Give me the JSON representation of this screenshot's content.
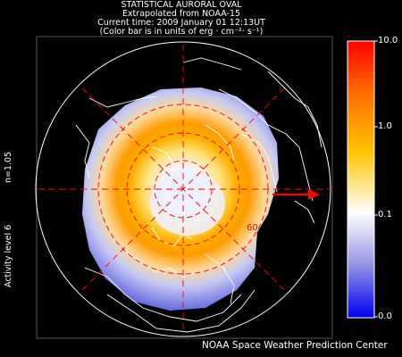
{
  "header": {
    "line1": "STATISTICAL AURORAL OVAL",
    "line2": "Extrapolated from NOAA-15",
    "line3": "Current time: 2009 January 01 12:13UT",
    "line4": "(Color bar is in units of erg · cm⁻²· s⁻¹)"
  },
  "side_labels": {
    "index": "n=1.05",
    "activity": "Activity level 6"
  },
  "map": {
    "latitude_label": "60",
    "grid_color": "#ff0000"
  },
  "colorbar": {
    "ticks": [
      "10.0",
      "1.0",
      "0.1",
      "0.0"
    ],
    "colors": [
      "#ff0000",
      "#ff8c00",
      "#ffe800",
      "#ffffff",
      "#7070e0",
      "#0000ff"
    ]
  },
  "footer": {
    "credit": "NOAA Space Weather Prediction Center"
  }
}
